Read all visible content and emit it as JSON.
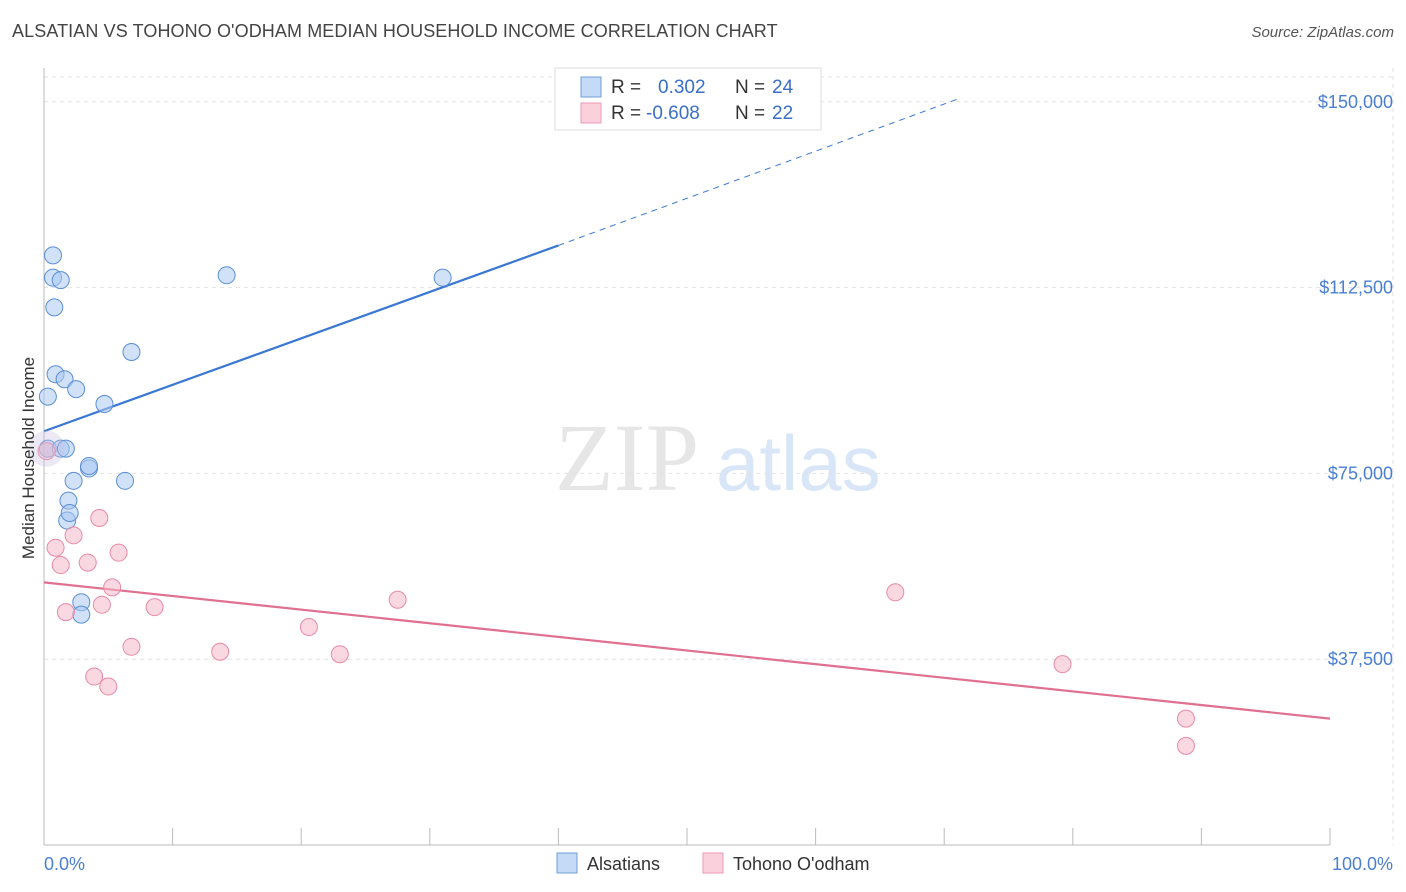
{
  "header": {
    "title": "ALSATIAN VS TOHONO O'ODHAM MEDIAN HOUSEHOLD INCOME CORRELATION CHART",
    "source": "Source: ZipAtlas.com"
  },
  "watermark": {
    "zip": "ZIP",
    "atlas": "atlas"
  },
  "legend": {
    "rows": [
      {
        "r_label": "R =",
        "r_value": "0.302",
        "n_label": "N =",
        "n_value": "24",
        "color": "#a9c8f2"
      },
      {
        "r_label": "R =",
        "r_value": "-0.608",
        "n_label": "N =",
        "n_value": "22",
        "color": "#f5b8cb"
      }
    ]
  },
  "bottom_legend": {
    "items": [
      {
        "label": "Alsatians",
        "color": "#a9c8f2"
      },
      {
        "label": "Tohono O'odham",
        "color": "#f5b8cb"
      }
    ]
  },
  "chart_data": {
    "type": "scatter",
    "title": "ALSATIAN VS TOHONO O'ODHAM MEDIAN HOUSEHOLD INCOME CORRELATION CHART",
    "xlabel": "",
    "ylabel": "Median Household Income",
    "xlim": [
      0,
      100
    ],
    "ylim": [
      0,
      155000
    ],
    "x_tick_labels": [
      "0.0%",
      "100.0%"
    ],
    "y_ticks": [
      37500,
      75000,
      112500,
      150000
    ],
    "y_tick_labels": [
      "$37,500",
      "$75,000",
      "$112,500",
      "$150,000"
    ],
    "grid": true,
    "series": [
      {
        "name": "Alsatians",
        "color": "#a9c8f2",
        "stroke": "#5b8fd6",
        "trend_color": "#3a78d4",
        "trend": {
          "x0": 0,
          "y0": 83500,
          "x1": 40,
          "y1": 121000,
          "dash_x1": 71,
          "dash_y1": 150500
        },
        "points": [
          [
            0.3,
            80000
          ],
          [
            0.3,
            90500
          ],
          [
            0.7,
            114500
          ],
          [
            0.7,
            119000
          ],
          [
            0.8,
            108500
          ],
          [
            0.9,
            95000
          ],
          [
            1.3,
            114000
          ],
          [
            1.3,
            80000
          ],
          [
            1.6,
            94000
          ],
          [
            1.7,
            80000
          ],
          [
            1.8,
            65500
          ],
          [
            1.9,
            69500
          ],
          [
            2.0,
            67000
          ],
          [
            2.3,
            73500
          ],
          [
            2.5,
            92000
          ],
          [
            2.9,
            49000
          ],
          [
            2.9,
            46500
          ],
          [
            3.5,
            76000
          ],
          [
            3.5,
            76500
          ],
          [
            4.7,
            89000
          ],
          [
            6.3,
            73500
          ],
          [
            6.8,
            99500
          ],
          [
            14.2,
            115000
          ],
          [
            31.0,
            114500
          ]
        ]
      },
      {
        "name": "Tohono O'odham",
        "color": "#f5b8cb",
        "stroke": "#e88aa8",
        "trend_color": "#e0708f",
        "trend": {
          "x0": 0,
          "y0": 53000,
          "x1": 100,
          "y1": 25500
        },
        "points": [
          [
            0.2,
            79500
          ],
          [
            0.9,
            60000
          ],
          [
            1.3,
            56500
          ],
          [
            1.7,
            47000
          ],
          [
            2.3,
            62500
          ],
          [
            3.4,
            57000
          ],
          [
            3.9,
            34000
          ],
          [
            4.3,
            66000
          ],
          [
            4.5,
            48500
          ],
          [
            5.0,
            32000
          ],
          [
            5.3,
            52000
          ],
          [
            5.8,
            59000
          ],
          [
            6.8,
            40000
          ],
          [
            8.6,
            48000
          ],
          [
            13.7,
            39000
          ],
          [
            20.6,
            44000
          ],
          [
            23.0,
            38500
          ],
          [
            27.5,
            49500
          ],
          [
            66.2,
            51000
          ],
          [
            79.2,
            36500
          ],
          [
            88.8,
            25500
          ],
          [
            88.8,
            20000
          ]
        ]
      }
    ]
  }
}
